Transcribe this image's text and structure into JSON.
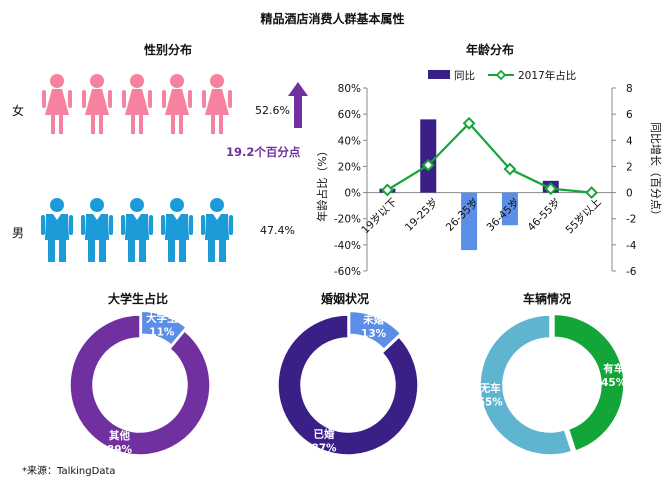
{
  "main_title": "精品酒店消费人群基本属性",
  "source": "*来源：TalkingData",
  "gender": {
    "title": "性别分布",
    "female_label": "女",
    "male_label": "男",
    "female_pct": "52.6%",
    "male_pct": "47.4%",
    "arrow_note": "19.2个百分点",
    "colors": {
      "female": "#f6829f",
      "male": "#1b9bd8",
      "arrow": "#7030a0"
    }
  },
  "chart_data": [
    {
      "type": "bar",
      "title": "年龄分布",
      "categories": [
        "19岁以下",
        "19-25岁",
        "26-35岁",
        "36-45岁",
        "46-55岁",
        "55岁以上"
      ],
      "series": [
        {
          "name": "同比",
          "type": "bar",
          "axis": "left",
          "values": [
            3,
            56,
            -44,
            -25,
            9,
            0
          ],
          "color": "#3a1f87",
          "negative_color": "#5b8ee6"
        },
        {
          "name": "2017年占比",
          "type": "line",
          "axis": "right",
          "values": [
            0.2,
            2.1,
            5.3,
            1.8,
            0.3,
            0.0
          ],
          "color": "#13a538"
        }
      ],
      "ylabel": "年龄占比（%）",
      "y2label": "同比增长（百分点）",
      "ylim": [
        -60,
        80
      ],
      "y2lim": [
        -6,
        8
      ],
      "yticks": [
        "80%",
        "60%",
        "40%",
        "20%",
        "0%",
        "-20%",
        "-40%",
        "-60%"
      ],
      "y2ticks": [
        "8",
        "6",
        "4",
        "2",
        "0",
        "-2",
        "-4",
        "-6"
      ],
      "legend_position": "top"
    },
    {
      "type": "pie",
      "title": "大学生占比",
      "slices": [
        {
          "label": "大学生",
          "value": 11,
          "pct_text": "11%",
          "color": "#5b8ee6"
        },
        {
          "label": "其他",
          "value": 89,
          "pct_text": "89%",
          "color": "#7030a0"
        }
      ]
    },
    {
      "type": "pie",
      "title": "婚姻状况",
      "slices": [
        {
          "label": "未婚",
          "value": 13,
          "pct_text": "13%",
          "color": "#5b8ee6"
        },
        {
          "label": "已婚",
          "value": 87,
          "pct_text": "87%",
          "color": "#3a1f87"
        }
      ]
    },
    {
      "type": "pie",
      "title": "车辆情况",
      "slices": [
        {
          "label": "有车",
          "value": 45,
          "pct_text": "45%",
          "color": "#13a538"
        },
        {
          "label": "无车",
          "value": 55,
          "pct_text": "55%",
          "color": "#5fb5d0"
        }
      ]
    }
  ]
}
